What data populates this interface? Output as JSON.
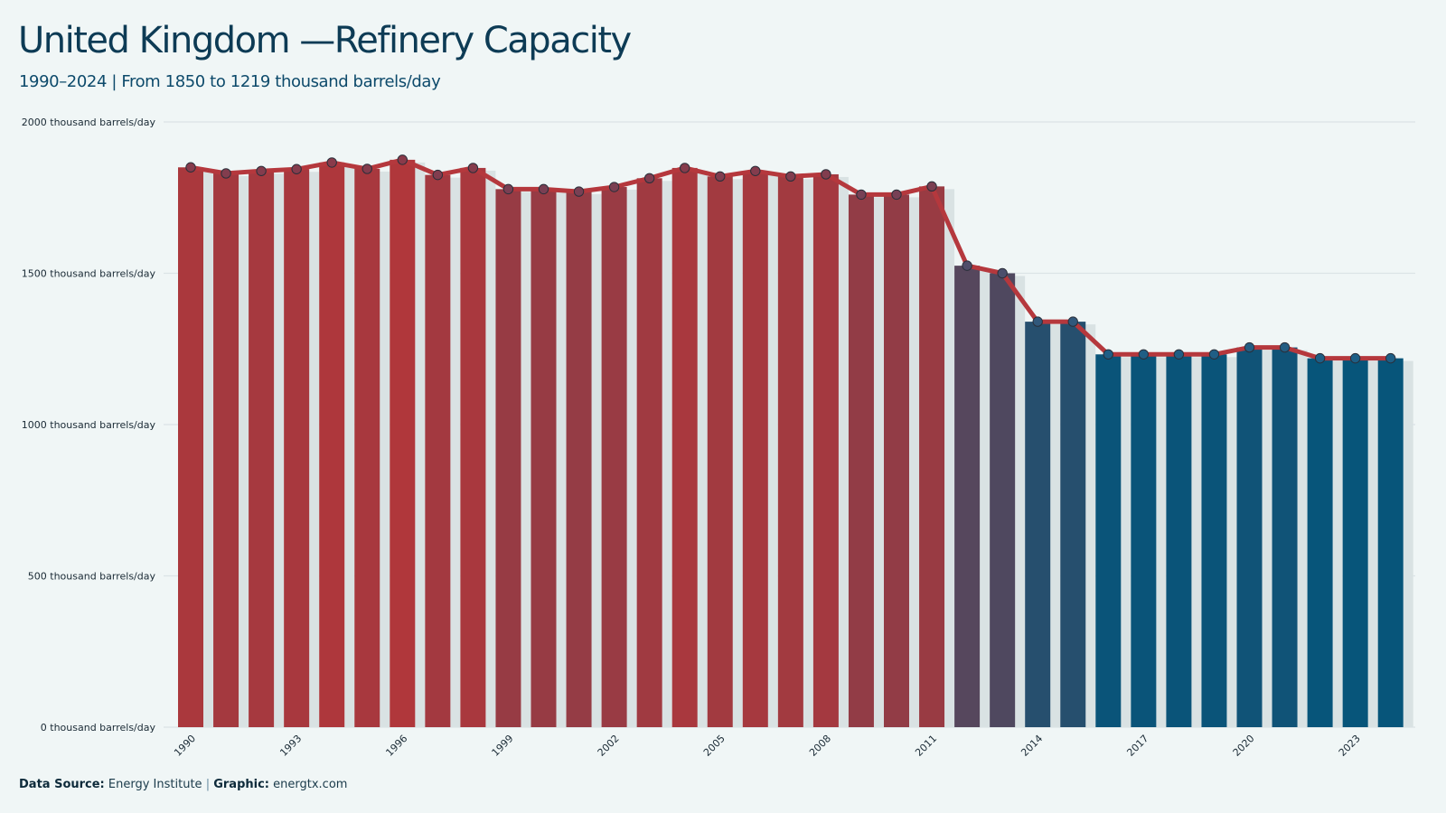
{
  "header": {
    "title": "United Kingdom —Refinery Capacity",
    "subtitle": "1990–2024 | From 1850 to 1219 thousand barrels/day"
  },
  "footer": {
    "source_label": "Data Source:",
    "source_value": "Energy Institute",
    "separator": "|",
    "graphic_label": "Graphic:",
    "graphic_value": "energtx.com"
  },
  "colors": {
    "background": "#f0f6f6",
    "line": "#b5383d",
    "high": "#b0373b",
    "low": "#07557a",
    "shadow": "#d9e2e3",
    "grid": "#dbe4e6"
  },
  "chart_data": {
    "type": "bar",
    "title": "United Kingdom —Refinery Capacity",
    "ylim": [
      0,
      2000
    ],
    "y_ticks": [
      {
        "value": 0,
        "label": "0 thousand barrels/day"
      },
      {
        "value": 500,
        "label": "500 thousand barrels/day"
      },
      {
        "value": 1000,
        "label": "1000 thousand barrels/day"
      },
      {
        "value": 1500,
        "label": "1500 thousand barrels/day"
      },
      {
        "value": 2000,
        "label": "2000 thousand barrels/day"
      }
    ],
    "x_tick_labels": [
      "1990",
      "1993",
      "1996",
      "1999",
      "2002",
      "2005",
      "2008",
      "2011",
      "2014",
      "2017",
      "2020",
      "2023"
    ],
    "grid": true,
    "x": [
      1990,
      1991,
      1992,
      1993,
      1994,
      1995,
      1996,
      1997,
      1998,
      1999,
      2000,
      2001,
      2002,
      2003,
      2004,
      2005,
      2006,
      2007,
      2008,
      2009,
      2010,
      2011,
      2012,
      2013,
      2014,
      2015,
      2016,
      2017,
      2018,
      2019,
      2020,
      2021,
      2022,
      2023,
      2024
    ],
    "values": [
      1850,
      1830,
      1838,
      1844,
      1866,
      1845,
      1875,
      1825,
      1848,
      1778,
      1778,
      1770,
      1785,
      1814,
      1848,
      1820,
      1838,
      1820,
      1827,
      1760,
      1760,
      1787,
      1525,
      1500,
      1340,
      1340,
      1232,
      1232,
      1232,
      1232,
      1255,
      1255,
      1219,
      1219,
      1219
    ]
  }
}
